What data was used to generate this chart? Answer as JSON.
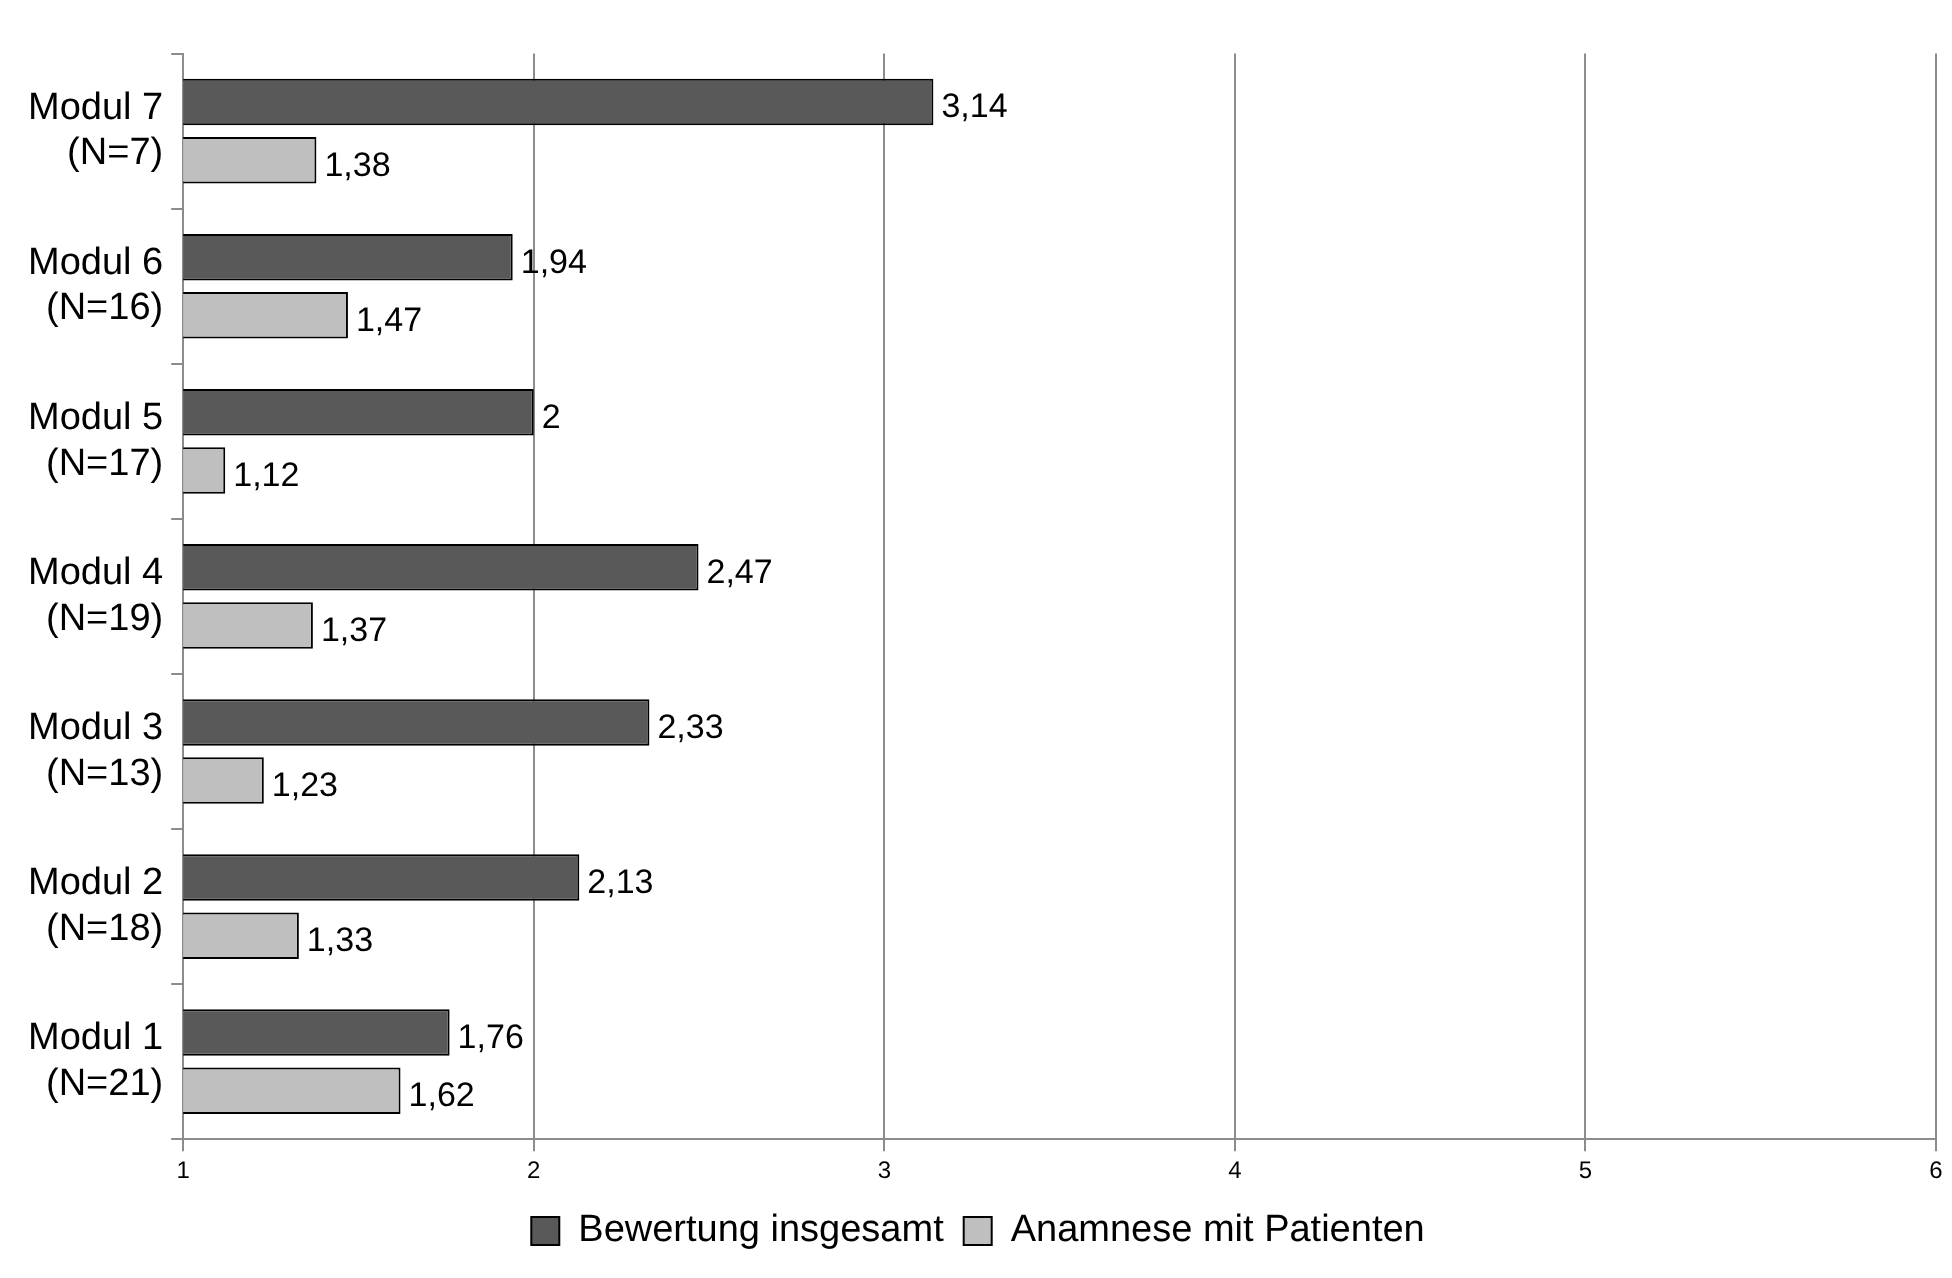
{
  "chart_data": {
    "type": "bar",
    "orientation": "horizontal",
    "categories": [
      "Modul 7\n(N=7)",
      "Modul 6\n(N=16)",
      "Modul 5\n(N=17)",
      "Modul 4\n(N=19)",
      "Modul 3\n(N=13)",
      "Modul 2\n(N=18)",
      "Modul 1\n(N=21)"
    ],
    "series": [
      {
        "name": "Bewertung insgesamt",
        "color": "#595959",
        "values": [
          3.14,
          1.94,
          2,
          2.47,
          2.33,
          2.13,
          1.76
        ],
        "value_labels": [
          "3,14",
          "1,94",
          "2",
          "2,47",
          "2,33",
          "2,13",
          "1,76"
        ]
      },
      {
        "name": "Anamnese mit Patienten",
        "color": "#bfbfbf",
        "values": [
          1.38,
          1.47,
          1.12,
          1.37,
          1.23,
          1.33,
          1.62
        ],
        "value_labels": [
          "1,38",
          "1,47",
          "1,12",
          "1,37",
          "1,23",
          "1,33",
          "1,62"
        ]
      }
    ],
    "xlim": [
      1,
      6
    ],
    "xticks": [
      1,
      2,
      3,
      4,
      5,
      6
    ],
    "grid": "x",
    "legend": "bottom"
  }
}
